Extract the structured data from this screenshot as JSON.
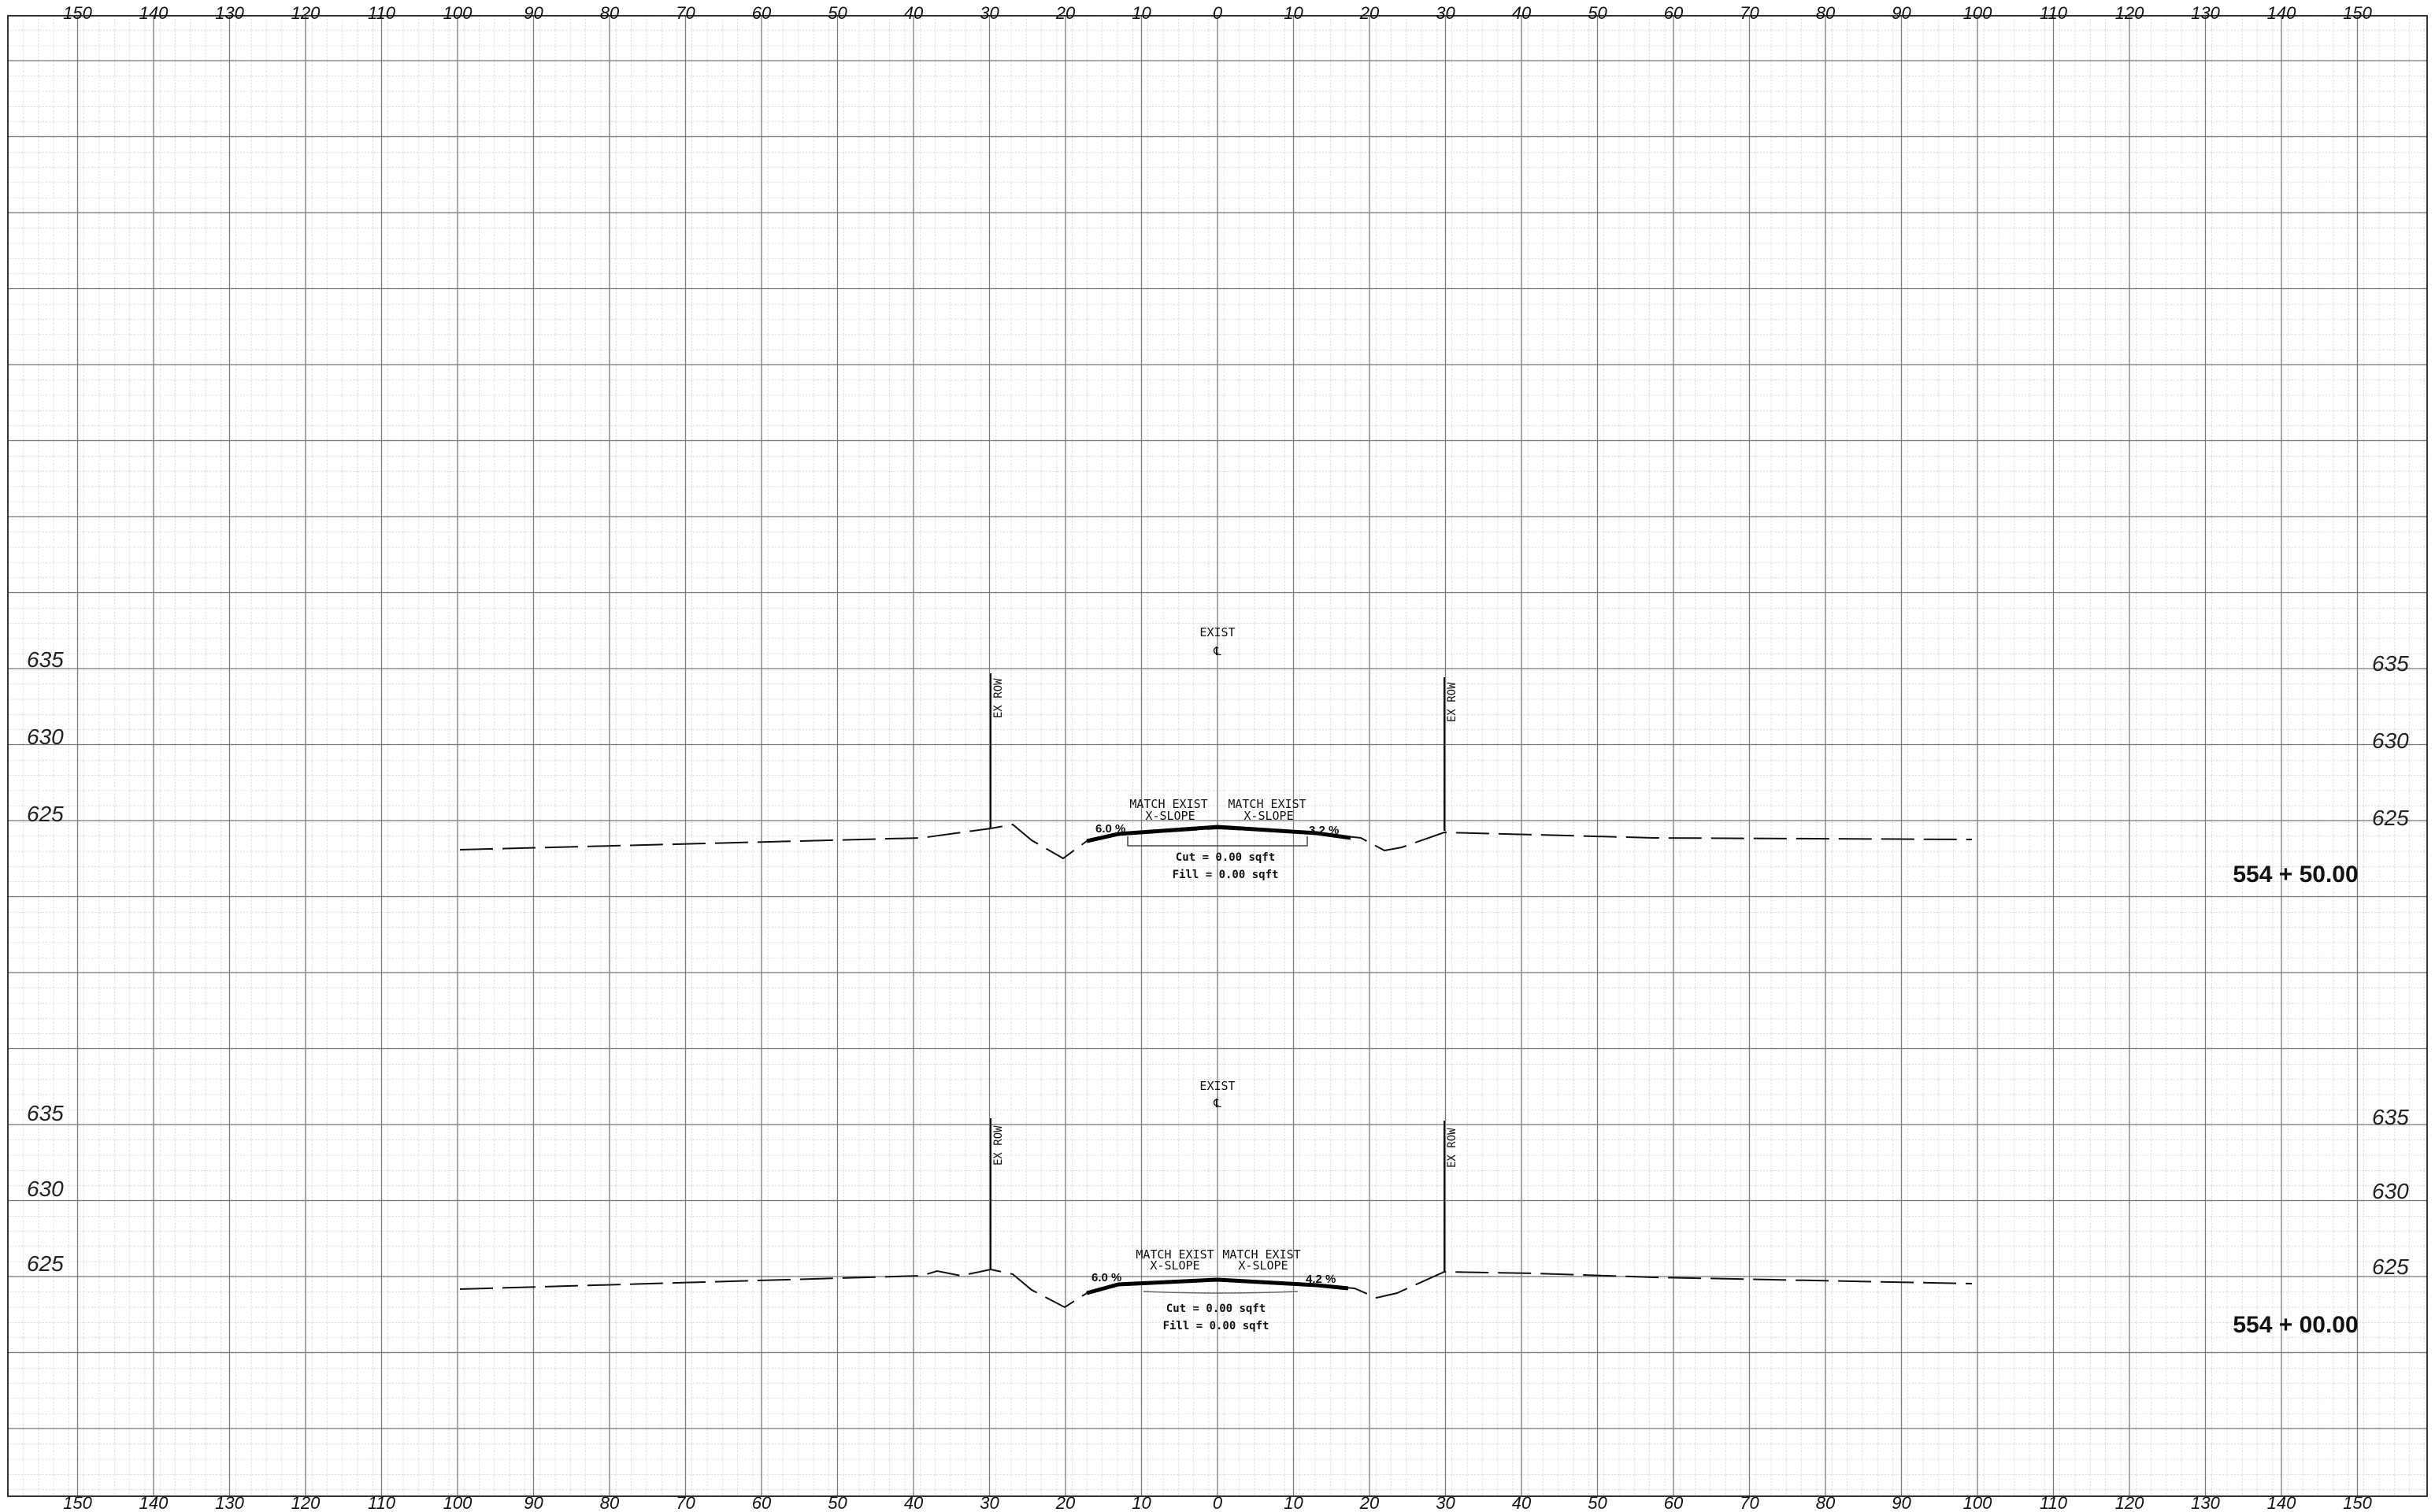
{
  "sheet": {
    "top_scale": [
      "150",
      "140",
      "130",
      "120",
      "110",
      "100",
      "90",
      "80",
      "70",
      "60",
      "50",
      "40",
      "30",
      "20",
      "10",
      "0",
      "10",
      "20",
      "30",
      "40",
      "50",
      "60",
      "70",
      "80",
      "90",
      "100",
      "110",
      "120",
      "130",
      "140",
      "150"
    ],
    "bottom_scale": [
      "150",
      "140",
      "130",
      "120",
      "110",
      "100",
      "90",
      "80",
      "70",
      "60",
      "50",
      "40",
      "30",
      "20",
      "10",
      "0",
      "10",
      "20",
      "30",
      "40",
      "50",
      "60",
      "70",
      "80",
      "90",
      "100",
      "110",
      "120",
      "130",
      "140",
      "150"
    ]
  },
  "sections": [
    {
      "station": "554 + 50.00",
      "elevation_labels": [
        "635",
        "630",
        "625"
      ],
      "centerline_label": "EXIST",
      "centerline_symbol": "℄",
      "row_label_left": "EX ROW",
      "row_label_right": "EX ROW",
      "left_note": [
        "MATCH EXIST",
        "X-SLOPE"
      ],
      "right_note": [
        "MATCH EXIST",
        "X-SLOPE"
      ],
      "left_slope": "6.0 %",
      "right_slope": "3.2 %",
      "cut": "Cut = 0.00 sqft",
      "fill": "Fill = 0.00 sqft"
    },
    {
      "station": "554 + 00.00",
      "elevation_labels": [
        "635",
        "630",
        "625"
      ],
      "centerline_label": "EXIST",
      "centerline_symbol": "℄",
      "row_label_left": "EX ROW",
      "row_label_right": "EX ROW",
      "left_note": [
        "MATCH EXIST",
        "X-SLOPE"
      ],
      "right_note": [
        "MATCH EXIST",
        "X-SLOPE"
      ],
      "left_slope": "6.0 %",
      "right_slope": "4.2 %",
      "cut": "Cut = 0.00 sqft",
      "fill": "Fill = 0.00 sqft"
    }
  ]
}
